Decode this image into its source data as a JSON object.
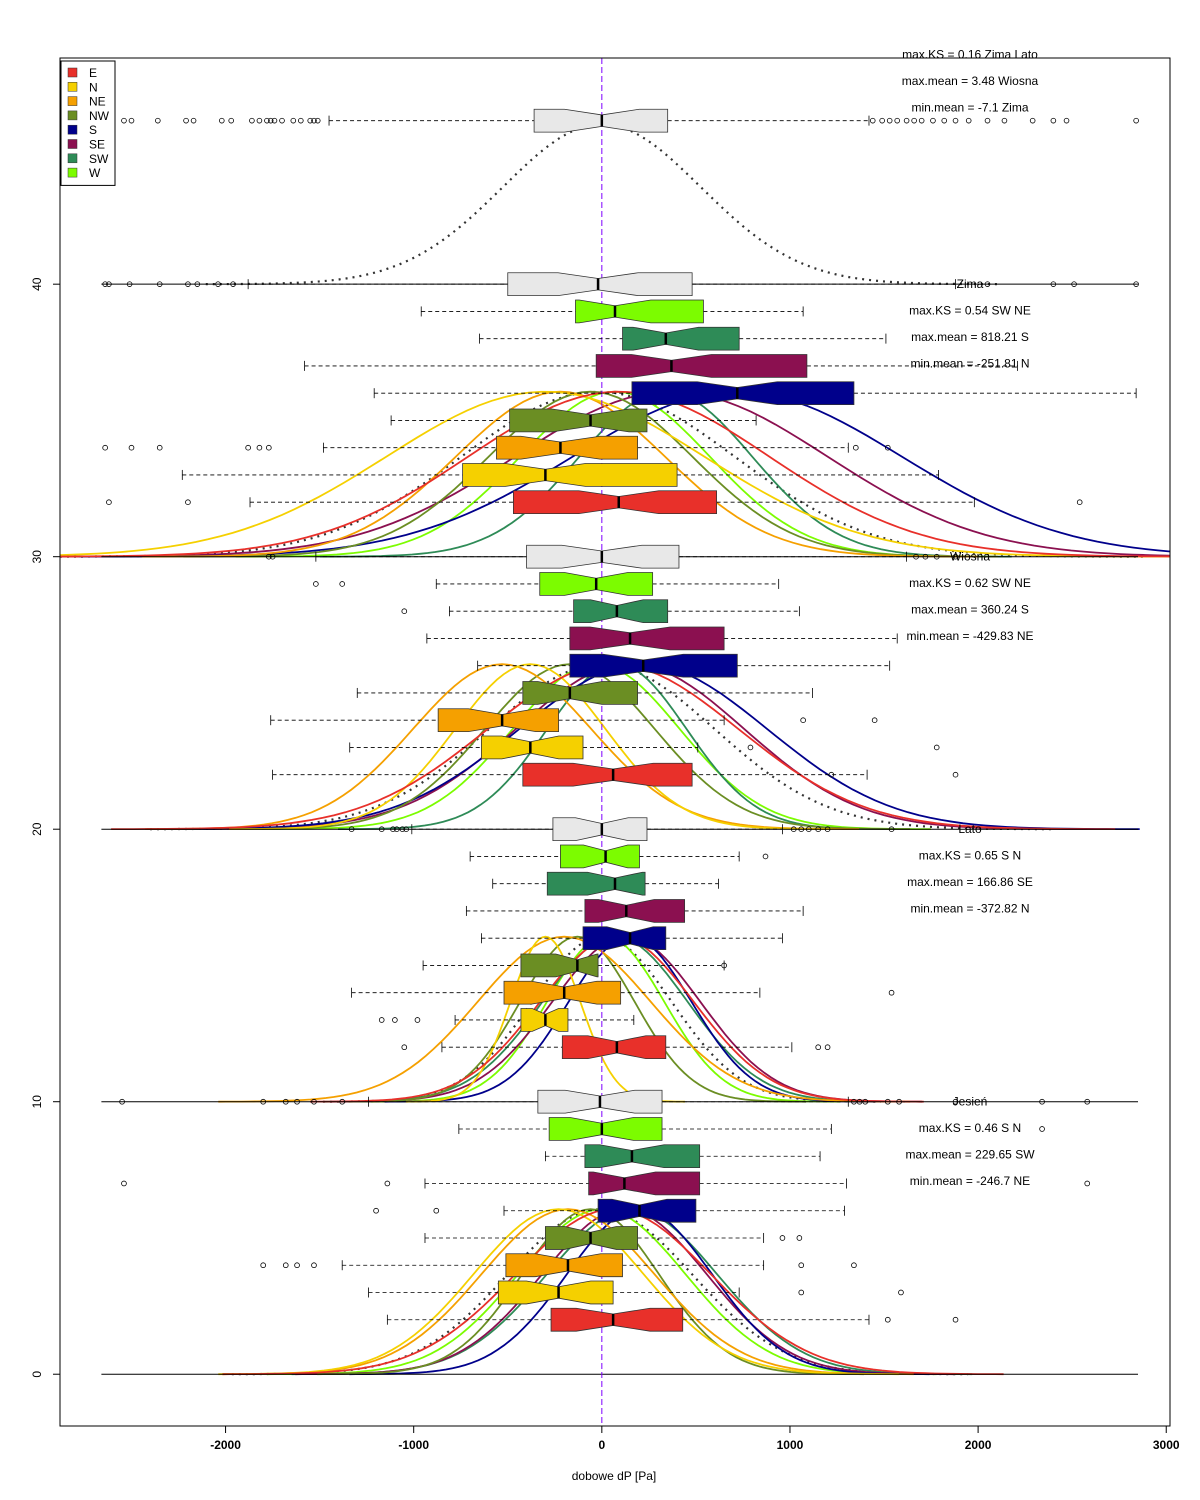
{
  "chart_data": {
    "type": "boxplot",
    "xlabel": "dobowe dP [Pa]",
    "xlim": [
      -2880,
      3020
    ],
    "ylim": [
      -1.9,
      48.3
    ],
    "x_ticks": [
      -2000,
      -1000,
      0,
      1000,
      2000,
      3000
    ],
    "x_tick_labels": [
      "-2000",
      "-1000",
      "0",
      "1000",
      "2000",
      "3000"
    ],
    "y_ticks": [
      0,
      10,
      20,
      30,
      40
    ],
    "y_tick_labels": [
      "0",
      "10",
      "20",
      "30",
      "40"
    ],
    "reference_line_x": 0,
    "legend_position": "top-left",
    "directions": [
      {
        "name": "E",
        "color": "#E8302A"
      },
      {
        "name": "N",
        "color": "#F5D000"
      },
      {
        "name": "NE",
        "color": "#F5A000"
      },
      {
        "name": "NW",
        "color": "#6B8E23"
      },
      {
        "name": "S",
        "color": "#00008B"
      },
      {
        "name": "SE",
        "color": "#8B1050"
      },
      {
        "name": "SW",
        "color": "#2E8B57"
      },
      {
        "name": "W",
        "color": "#7CFC00"
      }
    ],
    "panels": [
      {
        "season": "",
        "baseline": 41,
        "stats": [
          "max.KS =  0.16 Zima Lato",
          "max.mean = 3.48 Wiosna",
          "min.mean = -7.1 Zima"
        ],
        "boxes": [
          {
            "series": "all",
            "y": 46,
            "whisker_low": -1450,
            "q1": -360,
            "median": 0,
            "q3": 350,
            "whisker_high": 1420,
            "outliers": [
              -2540,
              -2500,
              -2360,
              -2210,
              -2170,
              -2020,
              -1970,
              -1860,
              -1820,
              -1780,
              -1760,
              -1740,
              -1700,
              -1640,
              -1600,
              -1550,
              -1530,
              -1510,
              1440,
              1490,
              1530,
              1570,
              1620,
              1660,
              1700,
              1760,
              1820,
              1880,
              1950,
              2050,
              2140,
              2290,
              2400,
              2470,
              2840
            ]
          }
        ]
      },
      {
        "season": "Zima",
        "baseline": 31,
        "stats": [
          "max.KS = 0.54 SW NE",
          "max.mean = 818.21 S",
          "min.mean = -251.81 N"
        ],
        "boxes": [
          {
            "series": "all",
            "y": 40,
            "whisker_low": -1880,
            "q1": -500,
            "median": -20,
            "q3": 480,
            "whisker_high": 1880,
            "outliers": [
              -2640,
              -2620,
              -2510,
              -2350,
              -2200,
              -2150,
              -2040,
              -1960,
              2050,
              2400,
              2510,
              2840
            ]
          },
          {
            "series": "W",
            "y": 39,
            "whisker_low": -960,
            "q1": -140,
            "median": 70,
            "q3": 540,
            "whisker_high": 1070,
            "outliers": []
          },
          {
            "series": "SW",
            "y": 38,
            "whisker_low": -650,
            "q1": 110,
            "median": 340,
            "q3": 730,
            "whisker_high": 1510,
            "outliers": []
          },
          {
            "series": "SE",
            "y": 37,
            "whisker_low": -1580,
            "q1": -30,
            "median": 370,
            "q3": 1090,
            "whisker_high": 2210,
            "outliers": []
          },
          {
            "series": "S",
            "y": 36,
            "whisker_low": -1210,
            "q1": 160,
            "median": 720,
            "q3": 1340,
            "whisker_high": 2840,
            "outliers": []
          },
          {
            "series": "NW",
            "y": 35,
            "whisker_low": -1120,
            "q1": -490,
            "median": -60,
            "q3": 240,
            "whisker_high": 820,
            "outliers": []
          },
          {
            "series": "NE",
            "y": 34,
            "whisker_low": -1480,
            "q1": -560,
            "median": -220,
            "q3": 190,
            "whisker_high": 1310,
            "outliers": [
              -2640,
              -2500,
              -2350,
              -1880,
              -1820,
              -1770,
              1350,
              1520
            ]
          },
          {
            "series": "N",
            "y": 33,
            "whisker_low": -2230,
            "q1": -740,
            "median": -300,
            "q3": 400,
            "whisker_high": 1790,
            "outliers": []
          },
          {
            "series": "E",
            "y": 32,
            "whisker_low": -1870,
            "q1": -470,
            "median": 90,
            "q3": 610,
            "whisker_high": 1980,
            "outliers": [
              -2620,
              -2200,
              2540
            ]
          }
        ]
      },
      {
        "season": "Wiosna",
        "baseline": 21,
        "stats": [
          "max.KS = 0.62 SW NE",
          "max.mean = 360.24 S",
          "min.mean = -429.83 NE"
        ],
        "boxes": [
          {
            "series": "all",
            "y": 30,
            "whisker_low": -1520,
            "q1": -400,
            "median": 0,
            "q3": 410,
            "whisker_high": 1620,
            "outliers": [
              -1770,
              -1750,
              1670,
              1720,
              1780,
              1880
            ]
          },
          {
            "series": "W",
            "y": 29,
            "whisker_low": -880,
            "q1": -330,
            "median": -30,
            "q3": 270,
            "whisker_high": 940,
            "outliers": [
              -1520,
              -1380
            ]
          },
          {
            "series": "SW",
            "y": 28,
            "whisker_low": -810,
            "q1": -150,
            "median": 80,
            "q3": 350,
            "whisker_high": 1050,
            "outliers": [
              -1050
            ]
          },
          {
            "series": "SE",
            "y": 27,
            "whisker_low": -930,
            "q1": -170,
            "median": 150,
            "q3": 650,
            "whisker_high": 1570,
            "outliers": []
          },
          {
            "series": "S",
            "y": 26,
            "whisker_low": -660,
            "q1": -170,
            "median": 220,
            "q3": 720,
            "whisker_high": 1530,
            "outliers": []
          },
          {
            "series": "NW",
            "y": 25,
            "whisker_low": -1300,
            "q1": -420,
            "median": -170,
            "q3": 190,
            "whisker_high": 1120,
            "outliers": []
          },
          {
            "series": "NE",
            "y": 24,
            "whisker_low": -1760,
            "q1": -870,
            "median": -530,
            "q3": -230,
            "whisker_high": 650,
            "outliers": [
              1070,
              1450
            ]
          },
          {
            "series": "N",
            "y": 23,
            "whisker_low": -1340,
            "q1": -640,
            "median": -380,
            "q3": -100,
            "whisker_high": 510,
            "outliers": [
              790,
              1780
            ]
          },
          {
            "series": "E",
            "y": 22,
            "whisker_low": -1750,
            "q1": -420,
            "median": 60,
            "q3": 480,
            "whisker_high": 1410,
            "outliers": [
              1220,
              1880
            ]
          }
        ]
      },
      {
        "season": "Lato",
        "baseline": 11,
        "stats": [
          "max.KS = 0.65 S N",
          "max.mean = 166.86 SE",
          "min.mean = -372.82 N"
        ],
        "boxes": [
          {
            "series": "all",
            "y": 20,
            "whisker_low": -1010,
            "q1": -260,
            "median": 0,
            "q3": 240,
            "whisker_high": 960,
            "outliers": [
              -1330,
              -1170,
              -1110,
              -1090,
              -1060,
              -1040,
              1020,
              1060,
              1100,
              1150,
              1200,
              1540
            ]
          },
          {
            "series": "W",
            "y": 19,
            "whisker_low": -700,
            "q1": -220,
            "median": 20,
            "q3": 200,
            "whisker_high": 730,
            "outliers": [
              870
            ]
          },
          {
            "series": "SW",
            "y": 18,
            "whisker_low": -580,
            "q1": -290,
            "median": 70,
            "q3": 230,
            "whisker_high": 620,
            "outliers": []
          },
          {
            "series": "SE",
            "y": 17,
            "whisker_low": -720,
            "q1": -90,
            "median": 130,
            "q3": 440,
            "whisker_high": 1070,
            "outliers": []
          },
          {
            "series": "S",
            "y": 16,
            "whisker_low": -640,
            "q1": -100,
            "median": 150,
            "q3": 340,
            "whisker_high": 960,
            "outliers": []
          },
          {
            "series": "NW",
            "y": 15,
            "whisker_low": -950,
            "q1": -430,
            "median": -130,
            "q3": -20,
            "whisker_high": 650,
            "outliers": [
              650
            ]
          },
          {
            "series": "NE",
            "y": 14,
            "whisker_low": -1330,
            "q1": -520,
            "median": -200,
            "q3": 100,
            "whisker_high": 840,
            "outliers": [
              1540
            ]
          },
          {
            "series": "N",
            "y": 13,
            "whisker_low": -780,
            "q1": -430,
            "median": -300,
            "q3": -180,
            "whisker_high": 170,
            "outliers": [
              -1170,
              -1100,
              -980
            ]
          },
          {
            "series": "E",
            "y": 12,
            "whisker_low": -850,
            "q1": -210,
            "median": 80,
            "q3": 340,
            "whisker_high": 1010,
            "outliers": [
              -1050,
              1150,
              1200
            ]
          }
        ]
      },
      {
        "season": "Jesień",
        "baseline": 1,
        "stats": [
          "max.KS = 0.46 S N",
          "max.mean = 229.65 SW",
          "min.mean = -246.7 NE"
        ],
        "boxes": [
          {
            "series": "all",
            "y": 10,
            "whisker_low": -1240,
            "q1": -340,
            "median": -10,
            "q3": 320,
            "whisker_high": 1310,
            "outliers": [
              -2550,
              -1800,
              -1680,
              -1620,
              -1530,
              -1380,
              1340,
              1370,
              1400,
              1520,
              1580,
              1880,
              2340,
              2580
            ]
          },
          {
            "series": "W",
            "y": 9,
            "whisker_low": -760,
            "q1": -280,
            "median": 0,
            "q3": 320,
            "whisker_high": 1220,
            "outliers": [
              2340
            ]
          },
          {
            "series": "SW",
            "y": 8,
            "whisker_low": -300,
            "q1": -90,
            "median": 160,
            "q3": 520,
            "whisker_high": 1160,
            "outliers": []
          },
          {
            "series": "SE",
            "y": 7,
            "whisker_low": -940,
            "q1": -70,
            "median": 120,
            "q3": 520,
            "whisker_high": 1300,
            "outliers": [
              -2540,
              -1140,
              2580
            ]
          },
          {
            "series": "S",
            "y": 6,
            "whisker_low": -520,
            "q1": -20,
            "median": 200,
            "q3": 500,
            "whisker_high": 1290,
            "outliers": [
              -1200,
              -880
            ]
          },
          {
            "series": "NW",
            "y": 5,
            "whisker_low": -940,
            "q1": -300,
            "median": -60,
            "q3": 190,
            "whisker_high": 860,
            "outliers": [
              960,
              1050
            ]
          },
          {
            "series": "NE",
            "y": 4,
            "whisker_low": -1380,
            "q1": -510,
            "median": -180,
            "q3": 110,
            "whisker_high": 860,
            "outliers": [
              -1800,
              -1680,
              -1620,
              -1530,
              1060,
              1340
            ]
          },
          {
            "series": "N",
            "y": 3,
            "whisker_low": -1240,
            "q1": -550,
            "median": -230,
            "q3": 60,
            "whisker_high": 730,
            "outliers": [
              1060,
              1590
            ]
          },
          {
            "series": "E",
            "y": 2,
            "whisker_low": -1140,
            "q1": -270,
            "median": 60,
            "q3": 430,
            "whisker_high": 1420,
            "outliers": [
              1520,
              1880
            ]
          }
        ]
      }
    ]
  }
}
